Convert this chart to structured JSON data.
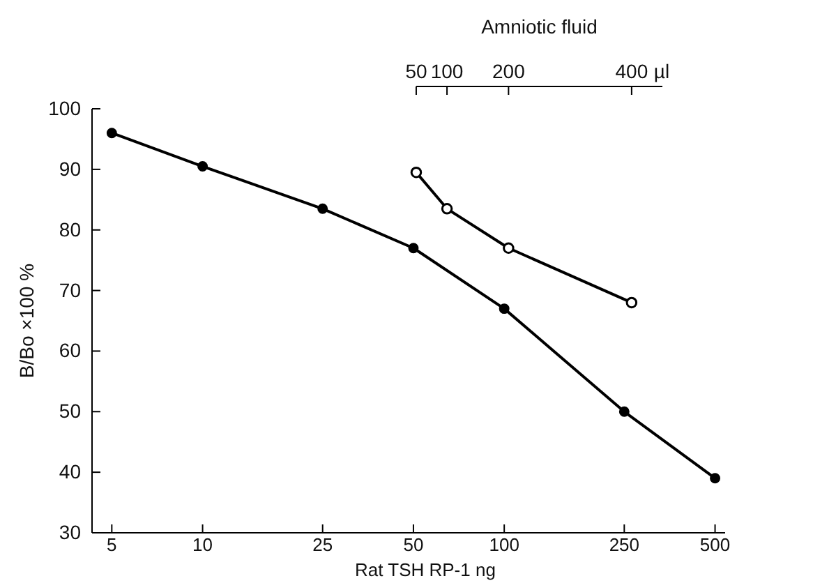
{
  "chart_data": {
    "type": "line",
    "xlabel": "Rat TSH RP-1 ng",
    "ylabel": "B/Bo ×100 %",
    "x2label": "Amniotic fluid",
    "log": "x",
    "annotations": [
      "µl"
    ],
    "xlim": [
      4.3,
      540
    ],
    "xticks": [
      5,
      10,
      25,
      50,
      100,
      250,
      500
    ],
    "ylim": [
      30,
      100
    ],
    "yticks": [
      30,
      40,
      50,
      60,
      70,
      80,
      90,
      100
    ],
    "x2lim": [
      50,
      450
    ],
    "x2ticks": [
      50,
      100,
      200,
      400
    ],
    "marker": "circle",
    "line_style": "solid",
    "grid": false,
    "series": [
      {
        "color": "#000000",
        "x": [
          5,
          10,
          25,
          50,
          100,
          250,
          500
        ],
        "values": [
          96,
          90.5,
          83.5,
          77,
          67,
          50,
          39
        ]
      },
      {
        "color": "#000000",
        "axis": "x2",
        "x": [
          50,
          100,
          200,
          400
        ],
        "values": [
          89.5,
          83.5,
          77,
          68
        ]
      }
    ]
  }
}
